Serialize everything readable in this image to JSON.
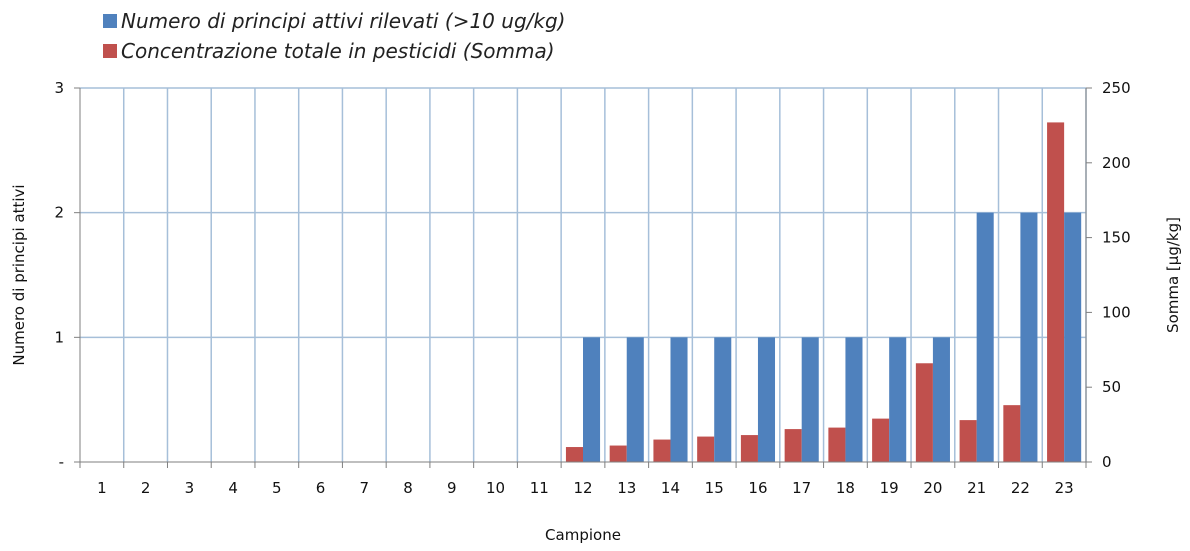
{
  "chart_data": {
    "type": "bar",
    "xlabel": "Campione",
    "ylabel_left": "Numero di principi attivi",
    "ylabel_right": "Somma [µg/kg]",
    "categories": [
      "1",
      "2",
      "3",
      "4",
      "5",
      "6",
      "7",
      "8",
      "9",
      "10",
      "11",
      "12",
      "13",
      "14",
      "15",
      "16",
      "17",
      "18",
      "19",
      "20",
      "21",
      "22",
      "23"
    ],
    "y_left": {
      "range": [
        0,
        3
      ],
      "ticks": [
        "-",
        "1",
        "2",
        "3"
      ]
    },
    "y_right": {
      "range": [
        0,
        250
      ],
      "ticks": [
        "0",
        "50",
        "100",
        "150",
        "200",
        "250"
      ]
    },
    "grid": true,
    "legend_position": "top-left",
    "series": [
      {
        "name": "Numero di principi attivi rilevati (>10 ug/kg)",
        "axis": "left",
        "color": "#4F81BD",
        "values": [
          0,
          0,
          0,
          0,
          0,
          0,
          0,
          0,
          0,
          0,
          0,
          1,
          1,
          1,
          1,
          1,
          1,
          1,
          1,
          1,
          2,
          2,
          2
        ]
      },
      {
        "name": "Concentrazione totale in pesticidi (Somma)",
        "axis": "right",
        "color": "#C0504D",
        "values": [
          0,
          0,
          0,
          0,
          0,
          0,
          0,
          0,
          0,
          0,
          0,
          10,
          11,
          15,
          17,
          18,
          22,
          23,
          29,
          66,
          28,
          38,
          227
        ]
      }
    ]
  }
}
